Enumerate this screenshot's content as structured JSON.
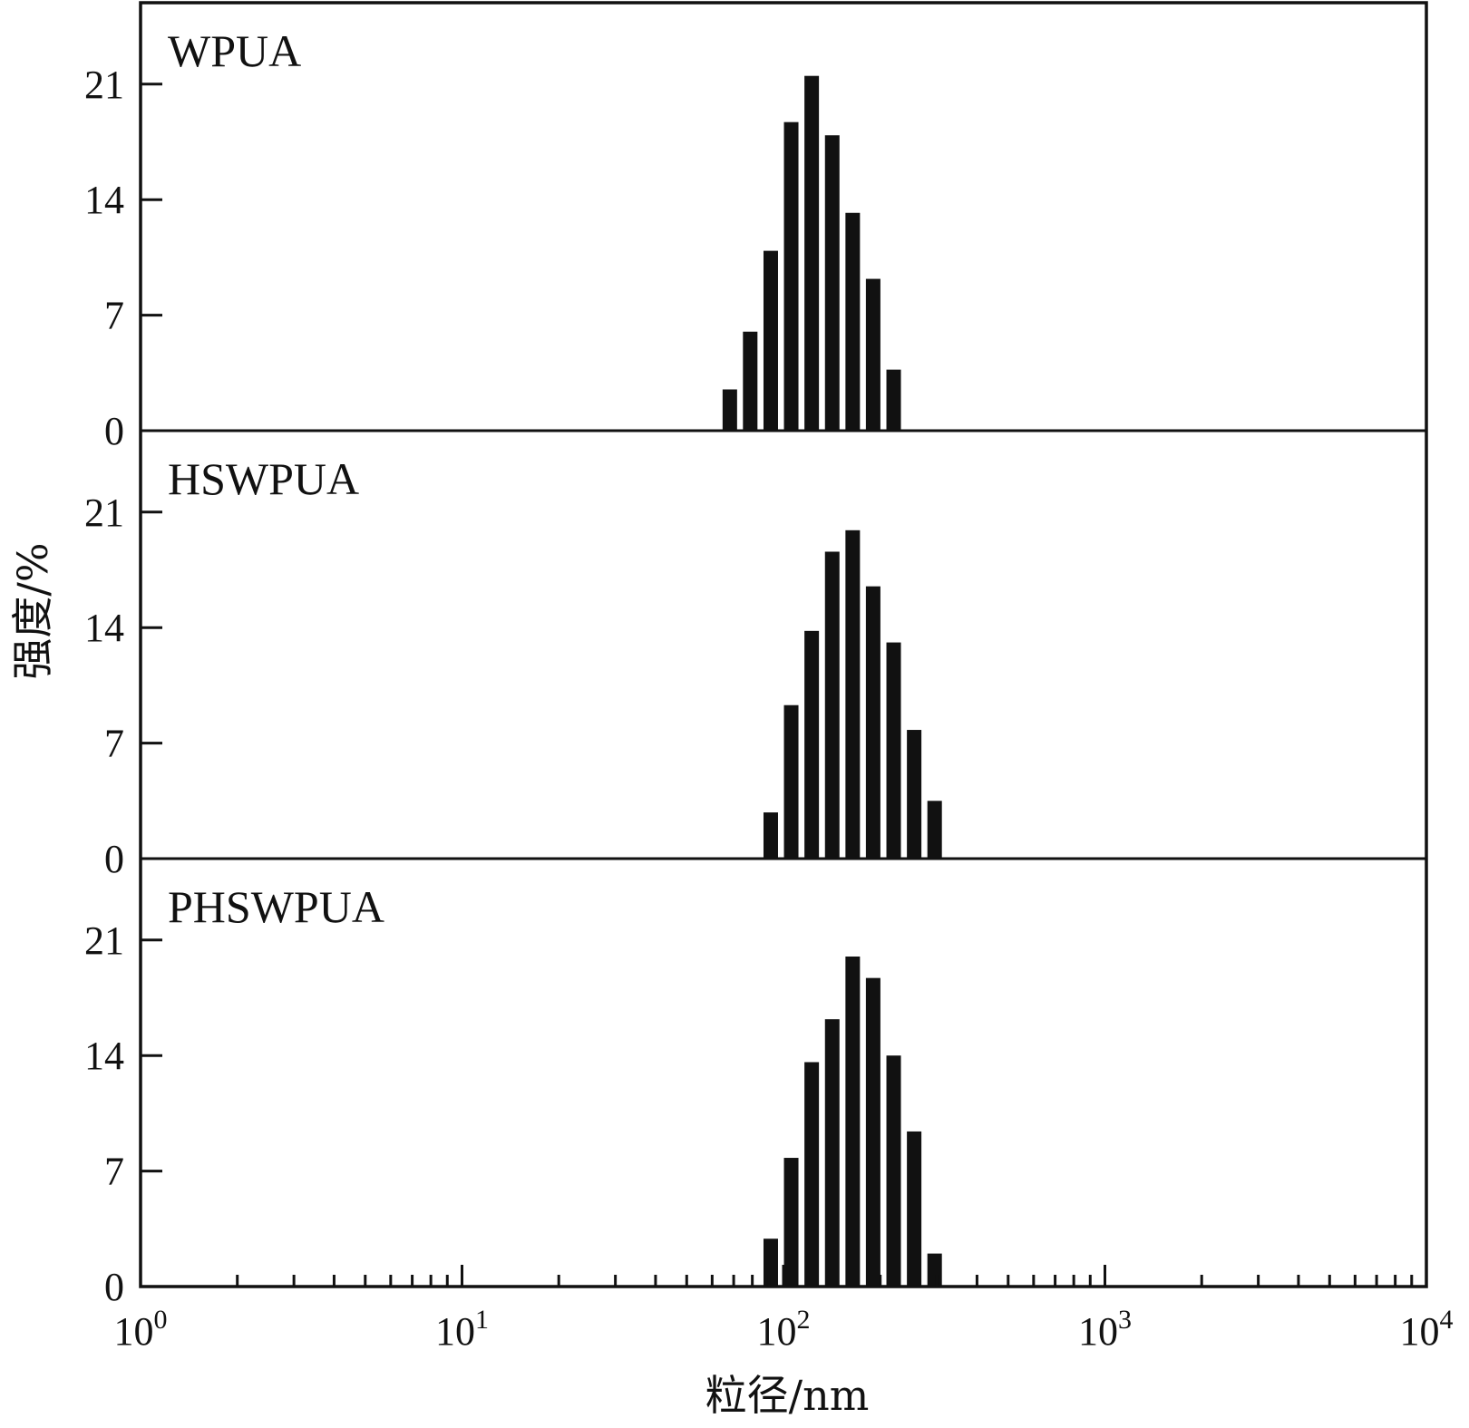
{
  "chart_data": {
    "type": "bar",
    "xlabel": "粒径/nm",
    "ylabel": "强度/%",
    "x_scale": "log",
    "xlim": [
      1,
      10000
    ],
    "x_ticks": [
      {
        "value": 1,
        "base": "10",
        "exp": "0"
      },
      {
        "value": 10,
        "base": "10",
        "exp": "1"
      },
      {
        "value": 100,
        "base": "10",
        "exp": "2"
      },
      {
        "value": 1000,
        "base": "10",
        "exp": "3"
      },
      {
        "value": 10000,
        "base": "10",
        "exp": "4"
      }
    ],
    "ylim": [
      0,
      26
    ],
    "y_ticks": [
      "0",
      "7",
      "14",
      "21"
    ],
    "grid": false,
    "legend": "none",
    "bar_color": "#111111",
    "panels": [
      {
        "label": "WPUA",
        "x": [
          68.1,
          78.8,
          91.3,
          105.7,
          122.4,
          141.8,
          164.2,
          190.1,
          220.2
        ],
        "values": [
          2.5,
          6.0,
          10.9,
          18.7,
          21.5,
          17.9,
          13.2,
          9.2,
          3.7
        ]
      },
      {
        "label": "HSWPUA",
        "x": [
          91.3,
          105.7,
          122.4,
          141.8,
          164.2,
          190.1,
          220.2,
          255.0,
          295.3
        ],
        "values": [
          2.8,
          9.3,
          13.8,
          18.6,
          19.9,
          16.5,
          13.1,
          7.8,
          3.5
        ]
      },
      {
        "label": "PHSWPUA",
        "x": [
          91.3,
          105.7,
          122.4,
          141.8,
          164.2,
          190.1,
          220.2,
          255.0,
          295.3
        ],
        "values": [
          2.9,
          7.8,
          13.6,
          16.2,
          20.0,
          18.7,
          14.0,
          9.4,
          2.0
        ]
      }
    ]
  }
}
